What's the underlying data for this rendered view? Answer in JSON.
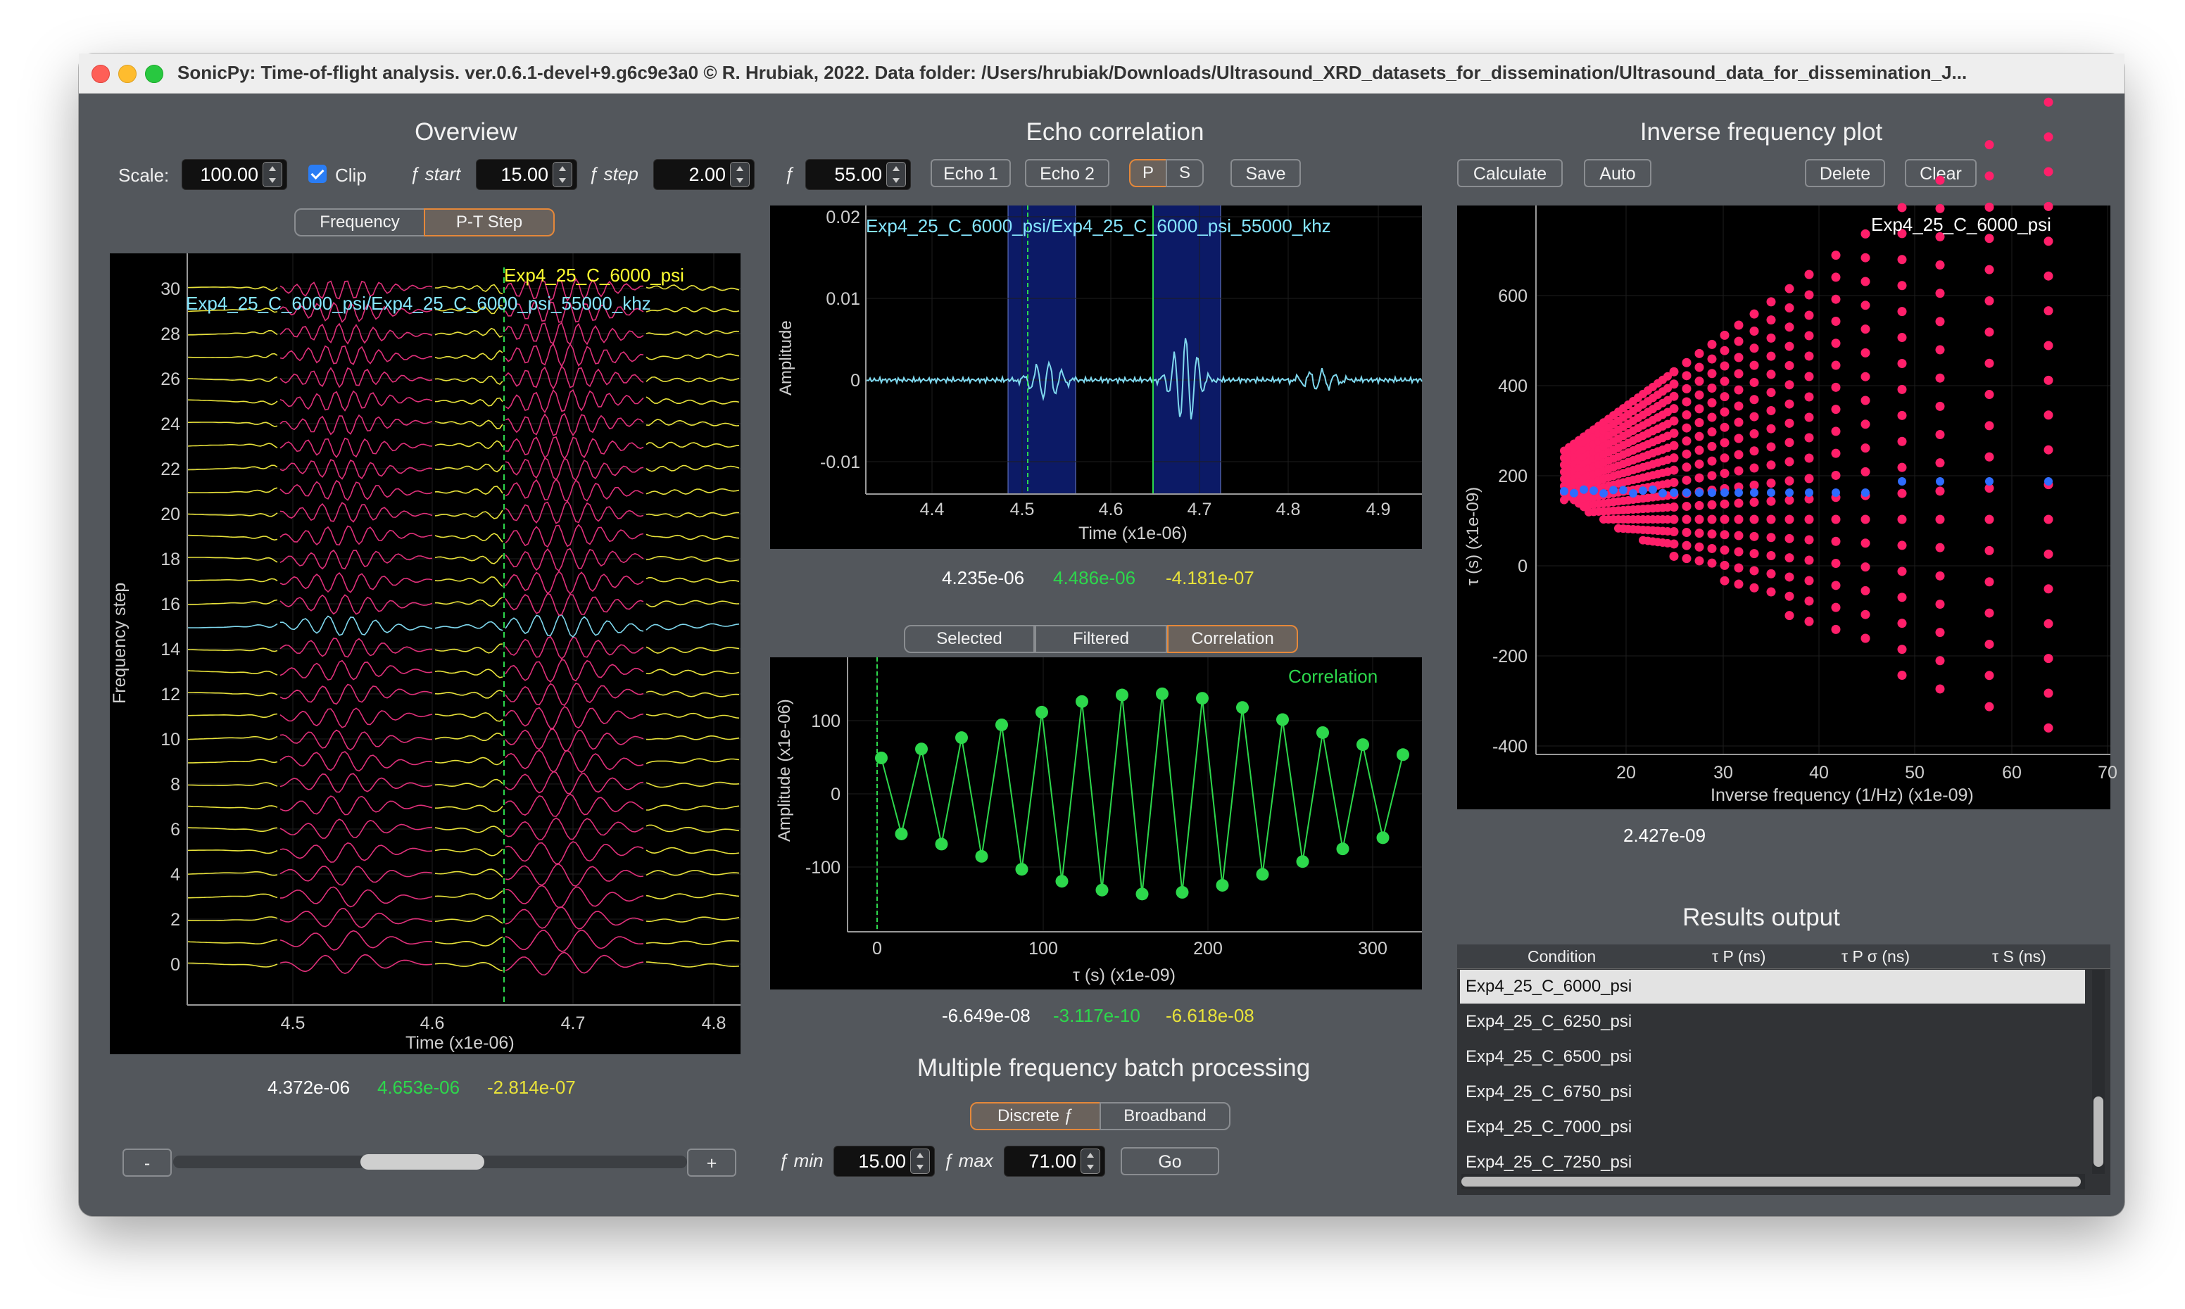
{
  "window": {
    "title": "SonicPy: Time-of-flight analysis. ver.0.6.1-devel+9.g6c9e3a0  © R. Hrubiak, 2022. Data folder: /Users/hrubiak/Downloads/Ultrasound_XRD_datasets_for_dissemination/Ultrasound_data_for_dissemination_J..."
  },
  "overview": {
    "title": "Overview",
    "scale_label": "Scale:",
    "scale_value": "100.00",
    "clip_label": "Clip",
    "clip_checked": true,
    "fstart_label": "ƒ start",
    "fstart_value": "15.00",
    "fstep_label": "ƒ step",
    "fstep_value": "2.00",
    "tab_frequency": "Frequency",
    "tab_pt_step": "P-T Step",
    "plot_label_1": "Exp4_25_C_6000_psi",
    "plot_label_2": "Exp4_25_C_6000_psi/Exp4_25_C_6000_psi_55000_khz",
    "y_axis_label": "Frequency step",
    "x_axis_label": "Time (x1e-06)",
    "y_ticks": [
      "0",
      "2",
      "4",
      "6",
      "8",
      "10",
      "12",
      "14",
      "16",
      "18",
      "20",
      "22",
      "24",
      "26",
      "28",
      "30"
    ],
    "x_ticks": [
      "4.5",
      "4.6",
      "4.7",
      "4.8"
    ],
    "cursor_1": "4.372e-06",
    "cursor_2": "4.653e-06",
    "cursor_3": "-2.814e-07",
    "minus_button": "-",
    "plus_button": "+",
    "slider_position": 0.48
  },
  "echo": {
    "title": "Echo correlation",
    "f_label": "ƒ",
    "f_value": "55.00",
    "echo1": "Echo 1",
    "echo2": "Echo 2",
    "p": "P",
    "s": "S",
    "save": "Save",
    "plot_label": "Exp4_25_C_6000_psi/Exp4_25_C_6000_psi_55000_khz",
    "y_axis_label": "Amplitude",
    "x_axis_label": "Time (x1e-06)",
    "y_ticks": [
      "0.02",
      "0.01",
      "0",
      "-0.01"
    ],
    "x_ticks": [
      "4.4",
      "4.5",
      "4.6",
      "4.7",
      "4.8",
      "4.9"
    ],
    "cursor_1": "4.235e-06",
    "cursor_2": "4.486e-06",
    "cursor_3": "-4.181e-07"
  },
  "correlation": {
    "tab_selected": "Selected",
    "tab_filtered": "Filtered",
    "tab_correlation": "Correlation",
    "plot_label": "Correlation",
    "y_axis_label": "Amplitude (x1e-06)",
    "x_axis_label": "τ (s) (x1e-09)",
    "y_ticks": [
      "100",
      "0",
      "-100"
    ],
    "x_ticks": [
      "0",
      "100",
      "200",
      "300"
    ],
    "cursor_1": "-6.649e-08",
    "cursor_2": "-3.117e-10",
    "cursor_3": "-6.618e-08"
  },
  "batch": {
    "title": "Multiple frequency batch processing",
    "tab_discrete": "Discrete ƒ",
    "tab_broadband": "Broadband",
    "fmin_label": "ƒ min",
    "fmin_value": "15.00",
    "fmax_label": "ƒ max",
    "fmax_value": "71.00",
    "go": "Go"
  },
  "inverse": {
    "title": "Inverse frequency plot",
    "calculate": "Calculate",
    "auto": "Auto",
    "delete": "Delete",
    "clear": "Clear",
    "plot_label": "Exp4_25_C_6000_psi",
    "y_axis_label": "τ (s) (x1e-09)",
    "x_axis_label": "Inverse frequency (1/Hz) (x1e-09)",
    "y_ticks": [
      "600",
      "400",
      "200",
      "0",
      "-200",
      "-400"
    ],
    "x_ticks": [
      "20",
      "30",
      "40",
      "50",
      "60",
      "70"
    ],
    "cursor_1": "2.427e-09"
  },
  "results": {
    "title": "Results output",
    "columns": [
      "Condition",
      "τ P (ns)",
      "τ P  σ (ns)",
      "τ S (ns)"
    ],
    "rows": [
      "Exp4_25_C_6000_psi",
      "Exp4_25_C_6250_psi",
      "Exp4_25_C_6500_psi",
      "Exp4_25_C_6750_psi",
      "Exp4_25_C_7000_psi",
      "Exp4_25_C_7250_psi"
    ]
  },
  "colors": {
    "window_bg": "#53575c",
    "yellow_trace": "#e8e23a",
    "magenta_trace": "#e0307a",
    "cyan_trace": "#7fd8ee",
    "green": "#2dd84c",
    "blue_point": "#2f6cff",
    "pink_point": "#ff1f6a",
    "highlight": "#e5883a"
  }
}
